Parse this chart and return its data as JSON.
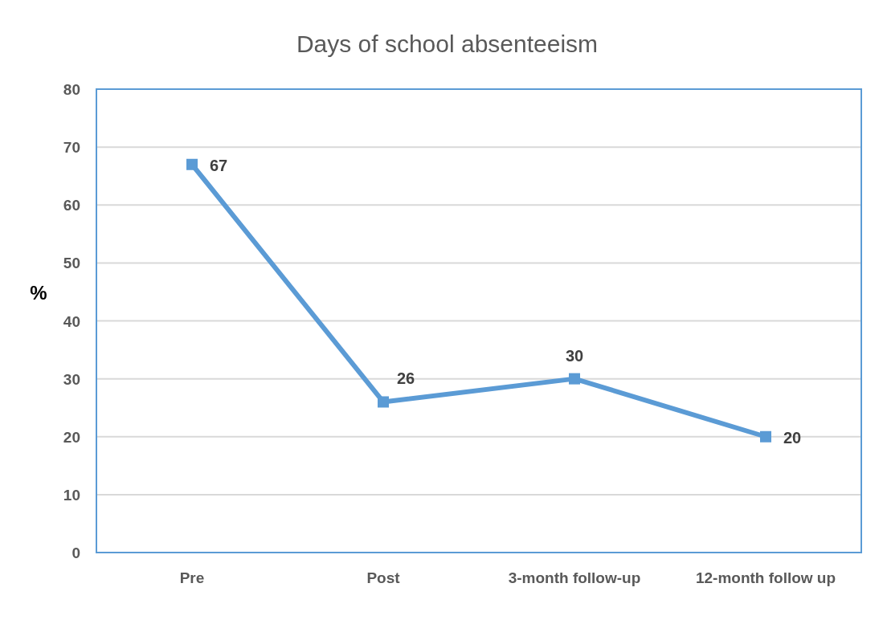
{
  "chart_data": {
    "type": "line",
    "title": "Days of school absenteeism",
    "ylabel": "%",
    "categories": [
      "Pre",
      "Post",
      "3-month follow-up",
      "12-month follow up"
    ],
    "series": [
      {
        "color": "#5b9bd5",
        "values": [
          67,
          26,
          30,
          20
        ]
      }
    ],
    "ylim": [
      0,
      80
    ],
    "yticks": [
      0,
      10,
      20,
      30,
      40,
      50,
      60,
      70,
      80
    ],
    "grid": "y",
    "marker": "square",
    "line_style": "solid",
    "data_labels": true
  }
}
